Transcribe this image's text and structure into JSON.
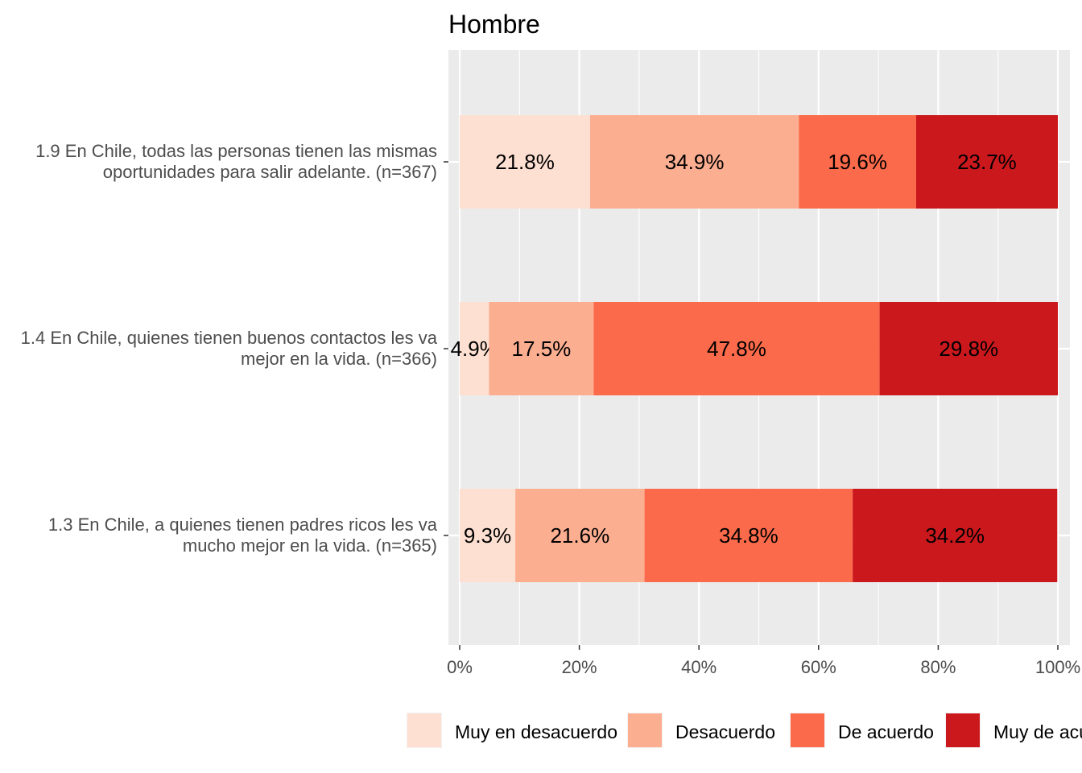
{
  "chart_data": {
    "type": "bar",
    "orientation": "horizontal",
    "stacked": "percent",
    "title": "Hombre",
    "categories": [
      [
        "1.9 En Chile, todas las personas tienen las mismas",
        "oportunidades para salir adelante. (n=367)"
      ],
      [
        "1.4 En Chile, quienes tienen buenos contactos les va",
        "mejor en la vida. (n=366)"
      ],
      [
        "1.3 En Chile, a quienes tienen padres ricos les va",
        "mucho mejor en la vida. (n=365)"
      ]
    ],
    "series": [
      {
        "name": "Muy en desacuerdo",
        "color": "#fee0d2",
        "values": [
          21.8,
          4.9,
          9.3
        ],
        "labels": [
          "21.8%",
          "4.9%",
          "9.3%"
        ]
      },
      {
        "name": "Desacuerdo",
        "color": "#fcae91",
        "values": [
          34.9,
          17.5,
          21.6
        ],
        "labels": [
          "34.9%",
          "17.5%",
          "21.6%"
        ]
      },
      {
        "name": "De acuerdo",
        "color": "#fb6a4a",
        "values": [
          19.6,
          47.8,
          34.8
        ],
        "labels": [
          "19.6%",
          "47.8%",
          "34.8%"
        ]
      },
      {
        "name": "Muy de acuerdo",
        "color": "#cb181d",
        "values": [
          23.7,
          29.8,
          34.2
        ],
        "labels": [
          "23.7%",
          "29.8%",
          "34.2%"
        ]
      }
    ],
    "x_ticks": [
      "0%",
      "20%",
      "40%",
      "60%",
      "80%",
      "100%"
    ],
    "xlim": [
      0,
      100
    ],
    "grid": true,
    "legend_position": "bottom",
    "panel_background": "#ebebeb"
  }
}
